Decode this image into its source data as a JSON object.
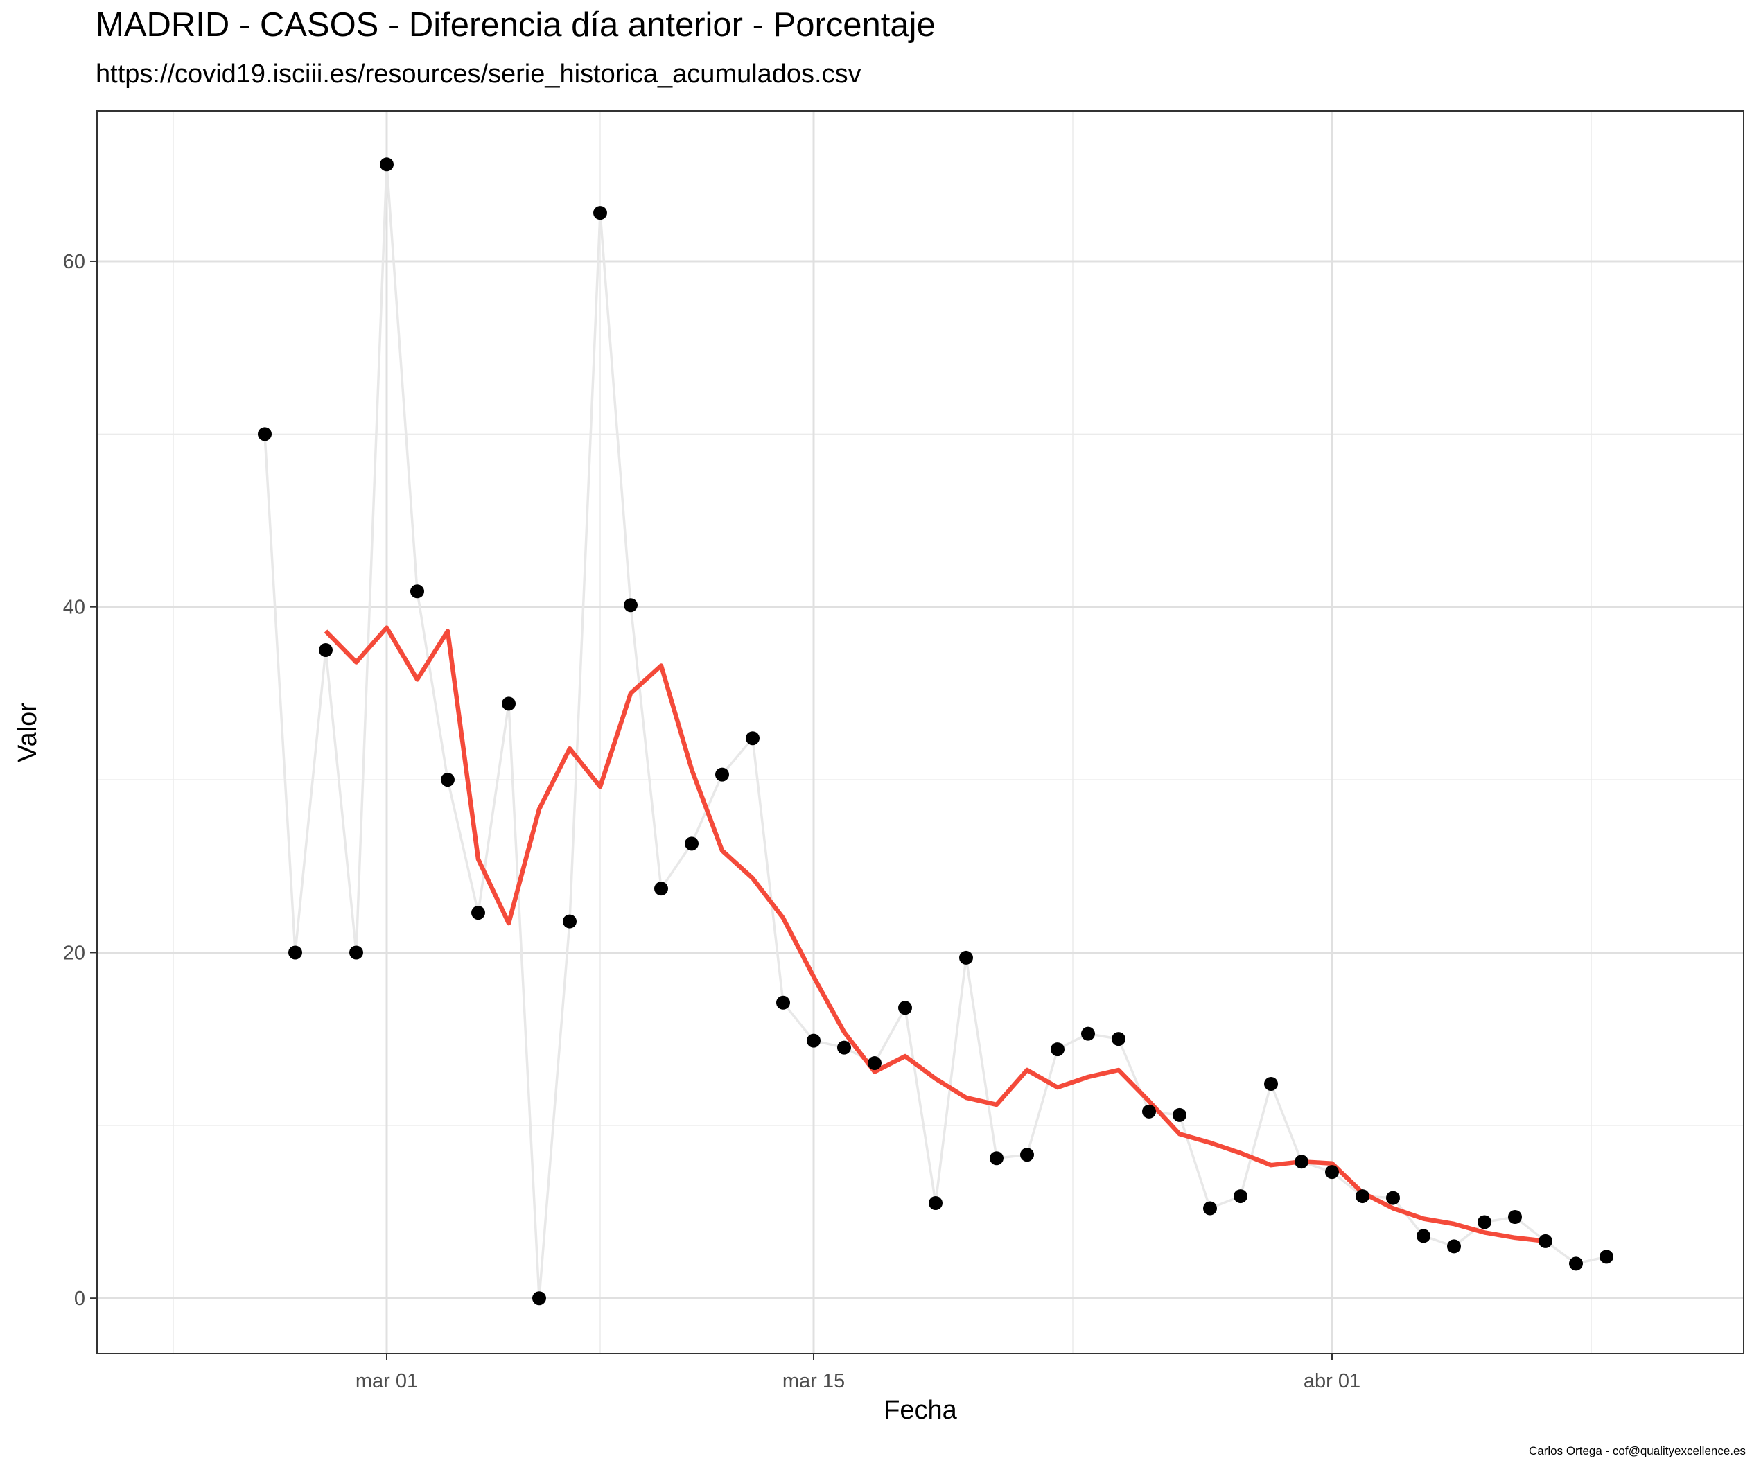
{
  "chart_data": {
    "type": "line",
    "title": "MADRID - CASOS - Diferencia día anterior - Porcentaje",
    "subtitle": "https://covid19.isciii.es/resources/serie_historica_acumulados.csv",
    "caption": "Carlos Ortega - cof@qualityexcellence.es",
    "xlabel": "Fecha",
    "ylabel": "Valor",
    "x_type": "date",
    "xlim": [
      "2020-02-20T12:00",
      "2020-04-14T12:00"
    ],
    "ylim": [
      -3.2,
      68.7
    ],
    "x_ticks": [
      {
        "date": "2020-03-01",
        "label": "mar 01"
      },
      {
        "date": "2020-03-15",
        "label": "mar 15"
      },
      {
        "date": "2020-04-01",
        "label": "abr 01"
      }
    ],
    "y_ticks": [
      0,
      20,
      40,
      60
    ],
    "grid": true,
    "series": [
      {
        "type": "line+points",
        "color": "#e8e8e8",
        "point_color": "#000000",
        "x": [
          "2020-02-26",
          "2020-02-27",
          "2020-02-28",
          "2020-02-29",
          "2020-03-01",
          "2020-03-02",
          "2020-03-03",
          "2020-03-04",
          "2020-03-05",
          "2020-03-06",
          "2020-03-07",
          "2020-03-08",
          "2020-03-09",
          "2020-03-10",
          "2020-03-11",
          "2020-03-12",
          "2020-03-13",
          "2020-03-14",
          "2020-03-15",
          "2020-03-16",
          "2020-03-17",
          "2020-03-18",
          "2020-03-19",
          "2020-03-20",
          "2020-03-21",
          "2020-03-22",
          "2020-03-23",
          "2020-03-24",
          "2020-03-25",
          "2020-03-26",
          "2020-03-27",
          "2020-03-28",
          "2020-03-29",
          "2020-03-30",
          "2020-03-31",
          "2020-04-01",
          "2020-04-02",
          "2020-04-03",
          "2020-04-04",
          "2020-04-05",
          "2020-04-06",
          "2020-04-07",
          "2020-04-08",
          "2020-04-09",
          "2020-04-10"
        ],
        "values": [
          50.0,
          20.0,
          37.5,
          20.0,
          65.6,
          40.9,
          30.0,
          22.3,
          34.4,
          0.0,
          21.8,
          62.8,
          40.1,
          23.7,
          26.3,
          30.3,
          32.4,
          17.1,
          14.9,
          14.5,
          13.6,
          16.8,
          5.5,
          19.7,
          8.1,
          8.3,
          14.4,
          15.3,
          15.0,
          10.8,
          10.6,
          5.2,
          5.9,
          12.4,
          7.9,
          7.3,
          5.9,
          5.8,
          3.6,
          3.0,
          4.4,
          4.7,
          3.3,
          2.0,
          2.4
        ]
      },
      {
        "type": "line",
        "color": "#f44a3a",
        "x": [
          "2020-02-28",
          "2020-02-29",
          "2020-03-01",
          "2020-03-02",
          "2020-03-03",
          "2020-03-04",
          "2020-03-05",
          "2020-03-06",
          "2020-03-07",
          "2020-03-08",
          "2020-03-09",
          "2020-03-10",
          "2020-03-11",
          "2020-03-12",
          "2020-03-13",
          "2020-03-14",
          "2020-03-15",
          "2020-03-16",
          "2020-03-17",
          "2020-03-18",
          "2020-03-19",
          "2020-03-20",
          "2020-03-21",
          "2020-03-22",
          "2020-03-23",
          "2020-03-24",
          "2020-03-25",
          "2020-03-26",
          "2020-03-27",
          "2020-03-28",
          "2020-03-29",
          "2020-03-30",
          "2020-03-31",
          "2020-04-01",
          "2020-04-02",
          "2020-04-03",
          "2020-04-04",
          "2020-04-05",
          "2020-04-06",
          "2020-04-07",
          "2020-04-08"
        ],
        "values": [
          38.6,
          36.8,
          38.8,
          35.8,
          38.6,
          25.4,
          21.7,
          28.3,
          31.8,
          29.6,
          35.0,
          36.6,
          30.6,
          25.9,
          24.3,
          22.0,
          18.6,
          15.4,
          13.1,
          14.0,
          12.7,
          11.6,
          11.2,
          13.2,
          12.2,
          12.8,
          13.2,
          11.4,
          9.5,
          9.0,
          8.4,
          7.7,
          7.9,
          7.8,
          6.1,
          5.2,
          4.6,
          4.3,
          3.8,
          3.5,
          3.3
        ]
      }
    ]
  }
}
